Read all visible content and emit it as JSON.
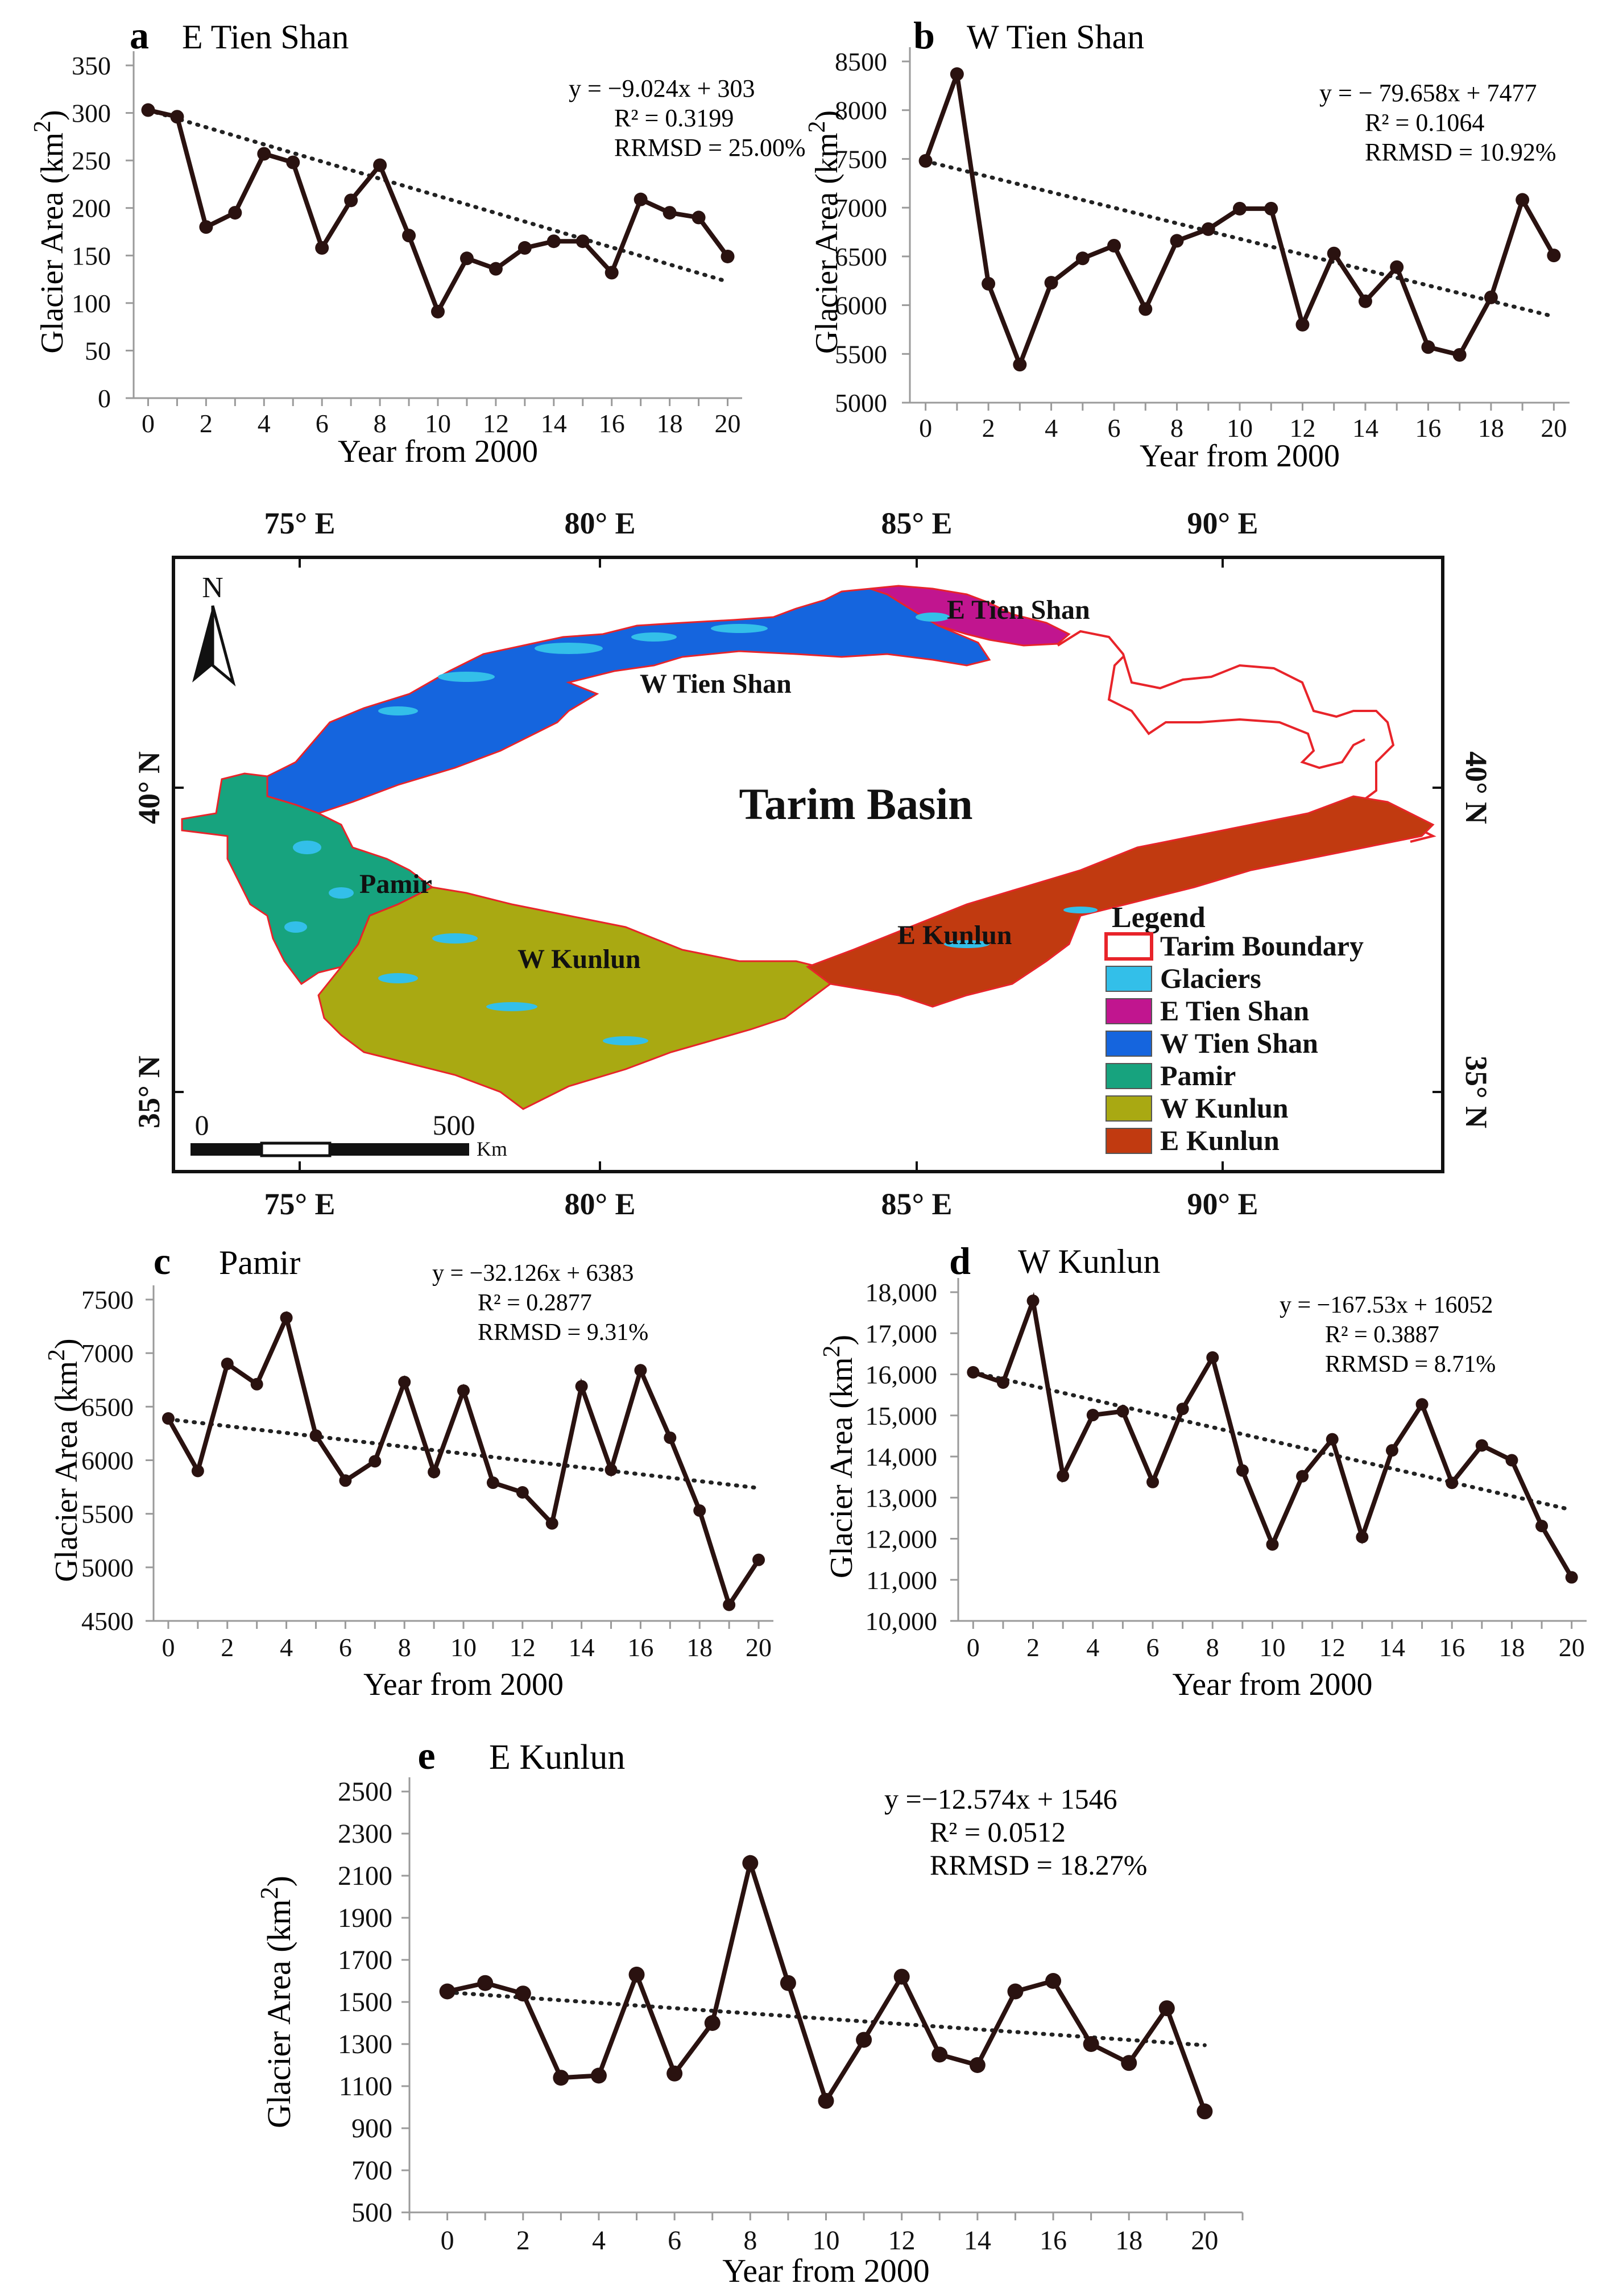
{
  "chart_data": [
    {
      "id": "a",
      "type": "line",
      "letter": "a",
      "title": "E Tien Shan",
      "xlabel": "Year from 2000",
      "ylabel": "Glacier Area (km",
      "ylabel_sup": "2",
      "ylabel_close": ")",
      "ylim": [
        0,
        350
      ],
      "yticks": [
        0,
        50,
        100,
        150,
        200,
        250,
        300,
        350
      ],
      "ytick_labels": [
        "0",
        "50",
        "100",
        "150",
        "200",
        "250",
        "300",
        "350"
      ],
      "xlim": [
        -0.5,
        20.5
      ],
      "xticks": [
        0,
        2,
        4,
        6,
        8,
        10,
        12,
        14,
        16,
        18,
        20
      ],
      "xtick_labels": [
        "0",
        "2",
        "4",
        "6",
        "8",
        "10",
        "12",
        "14",
        "16",
        "18",
        "20"
      ],
      "x": [
        0,
        1,
        2,
        3,
        4,
        5,
        6,
        7,
        8,
        9,
        10,
        11,
        12,
        13,
        14,
        15,
        16,
        17,
        18,
        19,
        20
      ],
      "values": [
        303,
        296,
        180,
        195,
        257,
        248,
        158,
        208,
        245,
        171,
        91,
        147,
        136,
        158,
        165,
        165,
        132,
        209,
        195,
        190,
        149
      ],
      "trend": {
        "slope": -9.024,
        "intercept": 303
      },
      "equation": "y = −9.024x + 303",
      "r2": "R² = 0.3199",
      "rrmsd": "RRMSD = 25.00%"
    },
    {
      "id": "b",
      "type": "line",
      "letter": "b",
      "title": "W Tien Shan",
      "xlabel": "Year from 2000",
      "ylabel": "Glacier Area (km",
      "ylabel_sup": "2",
      "ylabel_close": ")",
      "ylim": [
        5000,
        8500
      ],
      "yticks": [
        5000,
        5500,
        6000,
        6500,
        7000,
        7500,
        8000,
        8500
      ],
      "ytick_labels": [
        "5000",
        "5500",
        "6000",
        "6500",
        "7000",
        "7500",
        "8000",
        "8500"
      ],
      "xlim": [
        -0.5,
        20.5
      ],
      "xticks": [
        0,
        2,
        4,
        6,
        8,
        10,
        12,
        14,
        16,
        18,
        20
      ],
      "xtick_labels": [
        "0",
        "2",
        "4",
        "6",
        "8",
        "10",
        "12",
        "14",
        "16",
        "18",
        "20"
      ],
      "x": [
        0,
        1,
        2,
        3,
        4,
        5,
        6,
        7,
        8,
        9,
        10,
        11,
        12,
        13,
        14,
        15,
        16,
        17,
        18,
        19,
        20
      ],
      "values": [
        7480,
        8370,
        6220,
        5390,
        6230,
        6480,
        6610,
        5960,
        6660,
        6780,
        6990,
        6990,
        5800,
        6530,
        6040,
        6390,
        5570,
        5490,
        6080,
        7080,
        6510
      ],
      "trend": {
        "slope": -79.658,
        "intercept": 7477
      },
      "equation": "y = − 79.658x + 7477",
      "r2": "R² = 0.1064",
      "rrmsd": "RRMSD = 10.92%"
    },
    {
      "id": "c",
      "type": "line",
      "letter": "c",
      "title": "Pamir",
      "xlabel": "Year from 2000",
      "ylabel": "Glacier Area (km",
      "ylabel_sup": "2",
      "ylabel_close": ")",
      "ylim": [
        4500,
        7500
      ],
      "yticks": [
        4500,
        5000,
        5500,
        6000,
        6500,
        7000,
        7500
      ],
      "ytick_labels": [
        "4500",
        "5000",
        "5500",
        "6000",
        "6500",
        "7000",
        "7500"
      ],
      "xlim": [
        -0.5,
        20.5
      ],
      "xticks": [
        0,
        2,
        4,
        6,
        8,
        10,
        12,
        14,
        16,
        18,
        20
      ],
      "xtick_labels": [
        "0",
        "2",
        "4",
        "6",
        "8",
        "10",
        "12",
        "14",
        "16",
        "18",
        "20"
      ],
      "x": [
        0,
        1,
        2,
        3,
        4,
        5,
        6,
        7,
        8,
        9,
        10,
        11,
        12,
        13,
        14,
        15,
        16,
        17,
        18,
        19,
        20
      ],
      "values": [
        6390,
        5900,
        6900,
        6710,
        7330,
        6230,
        5810,
        5990,
        6730,
        5890,
        6650,
        5790,
        5700,
        5410,
        6690,
        5910,
        6840,
        6210,
        5530,
        4650,
        5070
      ],
      "trend": {
        "slope": -32.126,
        "intercept": 6383
      },
      "equation": "y = −32.126x + 6383",
      "r2": "R² = 0.2877",
      "rrmsd": "RRMSD = 9.31%"
    },
    {
      "id": "d",
      "type": "line",
      "letter": "d",
      "title": "W Kunlun",
      "xlabel": "Year from 2000",
      "ylabel": "Glacier Area (km",
      "ylabel_sup": "2",
      "ylabel_close": ")",
      "ylim": [
        10000,
        18000
      ],
      "yticks": [
        10000,
        11000,
        12000,
        13000,
        14000,
        15000,
        16000,
        17000,
        18000
      ],
      "ytick_labels": [
        "10,000",
        "11,000",
        "12,000",
        "13,000",
        "14,000",
        "15,000",
        "16,000",
        "17,000",
        "18,000"
      ],
      "xlim": [
        -0.5,
        20.5
      ],
      "xticks": [
        0,
        2,
        4,
        6,
        8,
        10,
        12,
        14,
        16,
        18,
        20
      ],
      "xtick_labels": [
        "0",
        "2",
        "4",
        "6",
        "8",
        "10",
        "12",
        "14",
        "16",
        "18",
        "20"
      ],
      "x": [
        0,
        1,
        2,
        3,
        4,
        5,
        6,
        7,
        8,
        9,
        10,
        11,
        12,
        13,
        14,
        15,
        16,
        17,
        18,
        19,
        20
      ],
      "values": [
        16050,
        15800,
        17790,
        13530,
        15010,
        15100,
        13380,
        15160,
        16410,
        13660,
        11860,
        13520,
        14420,
        12040,
        14150,
        15270,
        13360,
        14270,
        13910,
        12310,
        11060
      ],
      "trend": {
        "slope": -167.53,
        "intercept": 16052
      },
      "equation": "y = −167.53x + 16052",
      "r2": "R² = 0.3887",
      "rrmsd": "RRMSD = 8.71%"
    },
    {
      "id": "e",
      "type": "line",
      "letter": "e",
      "title": "E Kunlun",
      "xlabel": "Year from 2000",
      "ylabel": "Glacier Area (km",
      "ylabel_sup": "2",
      "ylabel_close": ")",
      "ylim": [
        500,
        2500
      ],
      "yticks": [
        500,
        700,
        900,
        1100,
        1300,
        1500,
        1700,
        1900,
        2100,
        2300,
        2500
      ],
      "ytick_labels": [
        "500",
        "700",
        "900",
        "1100",
        "1300",
        "1500",
        "1700",
        "1900",
        "2100",
        "2300",
        "2500"
      ],
      "xlim": [
        -1,
        21
      ],
      "xticks": [
        0,
        2,
        4,
        6,
        8,
        10,
        12,
        14,
        16,
        18,
        20
      ],
      "xtick_labels": [
        "0",
        "2",
        "4",
        "6",
        "8",
        "10",
        "12",
        "14",
        "16",
        "18",
        "20"
      ],
      "x": [
        0,
        1,
        2,
        3,
        4,
        5,
        6,
        7,
        8,
        9,
        10,
        11,
        12,
        13,
        14,
        15,
        16,
        17,
        18,
        19,
        20
      ],
      "values": [
        1550,
        1590,
        1540,
        1140,
        1150,
        1630,
        1160,
        1400,
        2160,
        1590,
        1030,
        1320,
        1620,
        1250,
        1200,
        1550,
        1600,
        1300,
        1210,
        1470,
        980
      ],
      "trend": {
        "slope": -12.574,
        "intercept": 1546
      },
      "equation": "y =−12.574x + 1546",
      "r2": "R² = 0.0512",
      "rrmsd": "RRMSD = 18.27%"
    }
  ],
  "map": {
    "title": "Tarim Basin",
    "north": "N",
    "lon_labels": [
      "75° E",
      "80° E",
      "85° E",
      "90° E"
    ],
    "lat_labels": [
      "40° N",
      "35° N"
    ],
    "scale_start": "0",
    "scale_end": "500",
    "scale_unit": "Km",
    "region_labels": {
      "e_tien_shan": "E Tien Shan",
      "w_tien_shan": "W Tien Shan",
      "pamir": "Pamir",
      "w_kunlun": "W Kunlun",
      "e_kunlun": "E Kunlun"
    },
    "legend": {
      "title": "Legend",
      "items": [
        {
          "label": "Tarim Boundary",
          "color": "#e8242a",
          "style": "outline"
        },
        {
          "label": "Glaciers",
          "color": "#33bfe9",
          "style": "fill"
        },
        {
          "label": "E Tien Shan",
          "color": "#c1158f",
          "style": "fill"
        },
        {
          "label": "W Tien Shan",
          "color": "#1565de",
          "style": "fill"
        },
        {
          "label": "Pamir",
          "color": "#17a37e",
          "style": "fill"
        },
        {
          "label": "W Kunlun",
          "color": "#a9a912",
          "style": "fill"
        },
        {
          "label": "E Kunlun",
          "color": "#c13a10",
          "style": "fill"
        }
      ]
    }
  }
}
